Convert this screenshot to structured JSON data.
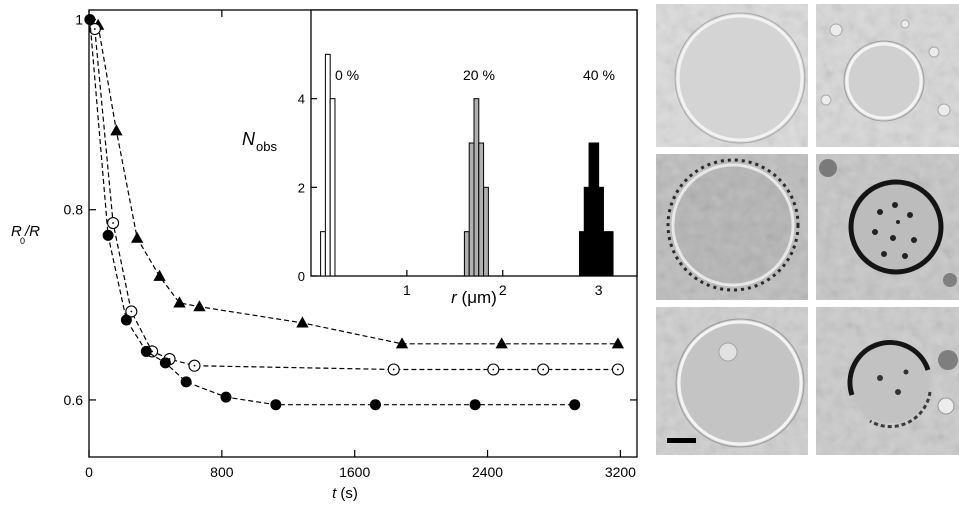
{
  "chart_data": [
    {
      "type": "line",
      "xlabel": "t (s)",
      "xlabel_var": "t",
      "xlabel_unit": "(s)",
      "ylabel": "R0/R",
      "ylabel_main": "R",
      "ylabel_sub": "0",
      "ylabel_den": "/R",
      "xlim": [
        0,
        3300
      ],
      "ylim": [
        0.54,
        1.01
      ],
      "xticks": [
        0,
        800,
        1600,
        2400,
        3200
      ],
      "xtick_labels": [
        "0",
        "800",
        "1600",
        "2400",
        "3200"
      ],
      "yticks": [
        0.6,
        0.8,
        1.0
      ],
      "ytick_labels": [
        "0.6",
        "0.8",
        "1"
      ],
      "grid": false,
      "series": [
        {
          "marker": "filled-triangle",
          "line": "dashed",
          "color": "#000000",
          "x": [
            55,
            165,
            290,
            425,
            545,
            665,
            1285,
            1885,
            2485,
            3185
          ],
          "y": [
            0.994,
            0.883,
            0.77,
            0.73,
            0.702,
            0.698,
            0.681,
            0.659,
            0.659,
            0.659
          ]
        },
        {
          "marker": "open-circle",
          "line": "dashed",
          "color": "#000000",
          "x": [
            35,
            145,
            255,
            380,
            485,
            635,
            1835,
            2435,
            2735,
            3185
          ],
          "y": [
            0.99,
            0.786,
            0.693,
            0.651,
            0.643,
            0.636,
            0.632,
            0.632,
            0.632,
            0.632
          ]
        },
        {
          "marker": "filled-circle",
          "line": "dashed",
          "color": "#000000",
          "x": [
            5,
            115,
            225,
            345,
            460,
            585,
            825,
            1125,
            1725,
            2325,
            2925
          ],
          "y": [
            1.0,
            0.773,
            0.684,
            0.651,
            0.639,
            0.619,
            0.603,
            0.595,
            0.595,
            0.595,
            0.595
          ]
        }
      ]
    },
    {
      "type": "bar",
      "inset": true,
      "xlabel": "r (μm)",
      "xlabel_var": "r",
      "xlabel_unit": " (μm)",
      "ylabel": "Nobs",
      "ylabel_main": "N",
      "ylabel_sub": "obs",
      "xlim": [
        0,
        3.4
      ],
      "ylim": [
        0,
        6
      ],
      "xticks": [
        1,
        2,
        3
      ],
      "xtick_labels": [
        "1",
        "2",
        "3"
      ],
      "yticks": [
        0,
        2,
        4
      ],
      "ytick_labels": [
        "0",
        "2",
        "4"
      ],
      "bin_width": 0.05,
      "annotations": [
        "0 %",
        "20 %",
        "40 %"
      ],
      "series": [
        {
          "label": "0 %",
          "fill": "#ffffff",
          "bins": [
            0.1,
            0.15,
            0.2
          ],
          "counts": [
            1,
            5,
            4
          ]
        },
        {
          "label": "20 %",
          "fill": "#b0b0b0",
          "bins": [
            1.6,
            1.65,
            1.7,
            1.75,
            1.8
          ],
          "counts": [
            1,
            3,
            4,
            3,
            2
          ]
        },
        {
          "label": "40 %",
          "fill": "#000000",
          "bins": [
            2.8,
            2.85,
            2.9,
            2.95,
            3.0,
            3.05,
            3.1
          ],
          "counts": [
            1,
            2,
            3,
            3,
            2,
            1,
            1
          ]
        }
      ]
    }
  ],
  "micrographs": {
    "panels": [
      {
        "id": "panel-1",
        "background": "#dcdcdc",
        "ring": "light",
        "has_scale_bar": false
      },
      {
        "id": "panel-2",
        "background": "#d8d8d8",
        "ring": "light",
        "has_scale_bar": false
      },
      {
        "id": "panel-3",
        "background": "#bdbdbd",
        "ring": "light-speckled",
        "has_scale_bar": false
      },
      {
        "id": "panel-4",
        "background": "#c6c6c6",
        "ring": "dark",
        "has_scale_bar": false
      },
      {
        "id": "panel-5",
        "background": "#cfcfcf",
        "ring": "light",
        "has_scale_bar": true
      },
      {
        "id": "panel-6",
        "background": "#cbcbcb",
        "ring": "dark-partial",
        "has_scale_bar": false
      }
    ]
  }
}
